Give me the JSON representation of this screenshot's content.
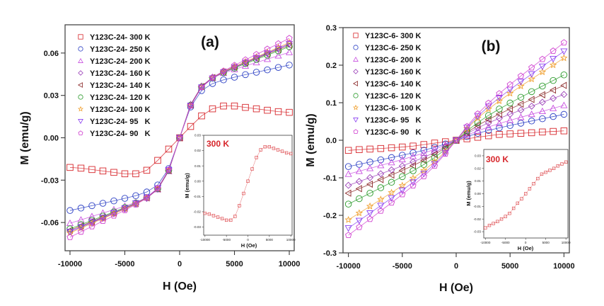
{
  "chart_data": [
    {
      "type": "scatter",
      "panel_label": "(a)",
      "xlabel": "H (Oe)",
      "ylabel": "M (emu/g)",
      "xlim": [
        -10450,
        10450
      ],
      "ylim": [
        -0.08,
        0.08
      ],
      "xticks": [
        -10000,
        -5000,
        0,
        5000,
        10000
      ],
      "xtick_labels": [
        "-10000",
        "-5000",
        "0",
        "5000",
        "10000"
      ],
      "yticks": [
        -0.06,
        -0.03,
        0,
        0.03,
        0.06
      ],
      "ytick_labels": [
        "-0.06",
        "-0.03",
        "0.00",
        "0.03",
        "0.06"
      ],
      "grid": false,
      "legend_position": "top-left",
      "x": [
        -10000,
        -9000,
        -8000,
        -7000,
        -6000,
        -5000,
        -4000,
        -3000,
        -2000,
        -1000,
        0,
        1000,
        2000,
        3000,
        4000,
        5000,
        6000,
        7000,
        8000,
        9000,
        10000
      ],
      "series": [
        {
          "name": "Y123C-24- 300 K",
          "marker": "square",
          "color": "#d7262b",
          "values": [
            -0.021,
            -0.0215,
            -0.0225,
            -0.0235,
            -0.0245,
            -0.0255,
            -0.0255,
            -0.023,
            -0.016,
            -0.008,
            0,
            0.008,
            0.0155,
            0.0205,
            0.0225,
            0.0225,
            0.0215,
            0.0205,
            0.0195,
            0.0185,
            0.018
          ]
        },
        {
          "name": "Y123C-24- 250 K",
          "marker": "circle",
          "color": "#2b3fc4",
          "values": [
            -0.0515,
            -0.0498,
            -0.0481,
            -0.0464,
            -0.0447,
            -0.0429,
            -0.041,
            -0.0384,
            -0.0334,
            -0.0218,
            0,
            0.0218,
            0.0334,
            0.0384,
            0.041,
            0.0429,
            0.0447,
            0.0464,
            0.0481,
            0.0498,
            0.0515
          ]
        },
        {
          "name": "Y123C-24- 200 K",
          "marker": "triangle-up",
          "color": "#c84fe0",
          "values": [
            -0.0605,
            -0.0581,
            -0.0557,
            -0.0533,
            -0.0509,
            -0.0484,
            -0.0458,
            -0.0424,
            -0.0366,
            -0.0237,
            0,
            0.0237,
            0.0366,
            0.0424,
            0.0458,
            0.0484,
            0.0509,
            0.0533,
            0.0557,
            0.0581,
            0.0605
          ]
        },
        {
          "name": "Y123C-24- 160 K",
          "marker": "diamond",
          "color": "#9a3fb8",
          "values": [
            -0.0665,
            -0.0633,
            -0.0601,
            -0.0569,
            -0.0537,
            -0.0504,
            -0.047,
            -0.0429,
            -0.0364,
            -0.0233,
            0,
            0.0233,
            0.0364,
            0.0429,
            0.047,
            0.0504,
            0.0537,
            0.0569,
            0.0601,
            0.0633,
            0.0665
          ]
        },
        {
          "name": "Y123C-24- 140 K",
          "marker": "triangle-left",
          "color": "#8b2a2a",
          "values": [
            -0.0655,
            -0.0624,
            -0.0593,
            -0.0562,
            -0.0531,
            -0.0499,
            -0.0466,
            -0.0426,
            -0.0362,
            -0.0232,
            0,
            0.0232,
            0.0362,
            0.0426,
            0.0466,
            0.0499,
            0.0531,
            0.0562,
            0.0593,
            0.0624,
            0.0655
          ]
        },
        {
          "name": "Y123C-24- 120 K",
          "marker": "circle",
          "color": "#2a9a2a",
          "values": [
            -0.0645,
            -0.0615,
            -0.0585,
            -0.0555,
            -0.0525,
            -0.0494,
            -0.0462,
            -0.0423,
            -0.036,
            -0.0231,
            0,
            0.0231,
            0.036,
            0.0423,
            0.0462,
            0.0494,
            0.0525,
            0.0555,
            0.0585,
            0.0615,
            0.0645
          ]
        },
        {
          "name": "Y123C-24- 100 K",
          "marker": "star",
          "color": "#f0a030",
          "values": [
            -0.0674,
            -0.064,
            -0.0606,
            -0.0572,
            -0.0538,
            -0.0503,
            -0.0467,
            -0.0424,
            -0.0359,
            -0.0229,
            0,
            0.0229,
            0.0359,
            0.0424,
            0.0467,
            0.0503,
            0.0538,
            0.0572,
            0.0606,
            0.064,
            0.0674
          ]
        },
        {
          "name": "Y123C-24- 95   K",
          "marker": "triangle-down",
          "color": "#8a3ff0",
          "values": [
            -0.0664,
            -0.0631,
            -0.0598,
            -0.0565,
            -0.0532,
            -0.0498,
            -0.0463,
            -0.0421,
            -0.0357,
            -0.0228,
            0,
            0.0228,
            0.0357,
            0.0421,
            0.0463,
            0.0498,
            0.0532,
            0.0565,
            0.0598,
            0.0631,
            0.0664
          ]
        },
        {
          "name": "Y123C-24- 90   K",
          "marker": "pentagon",
          "color": "#d040d0",
          "values": [
            -0.0704,
            -0.0666,
            -0.0628,
            -0.059,
            -0.0552,
            -0.0513,
            -0.0473,
            -0.0426,
            -0.0358,
            -0.0227,
            0,
            0.0227,
            0.0358,
            0.0426,
            0.0473,
            0.0513,
            0.0552,
            0.059,
            0.0628,
            0.0666,
            0.0704
          ]
        }
      ],
      "inset": {
        "type": "scatter",
        "annotation": "300 K",
        "annotation_color": "#d7262b",
        "xlabel": "H (Oe)",
        "ylabel": "M (emu/g)",
        "xlim": [
          -10300,
          10300
        ],
        "ylim": [
          -0.0353,
          0.03
        ],
        "xticks": [
          -10000,
          -5000,
          0,
          5000,
          10000
        ],
        "xtick_labels": [
          "-10000",
          "-5000",
          "0",
          "5000",
          "10000"
        ],
        "yticks": [
          -0.03,
          -0.02,
          -0.01,
          0,
          0.01,
          0.02,
          0.03
        ],
        "ytick_labels": [
          "-0.03",
          "-0.02",
          "-0.01",
          "0.00",
          "0.01",
          "0.02",
          "0.03"
        ],
        "x": [
          -10000,
          -9000,
          -8000,
          -7000,
          -6000,
          -5000,
          -4000,
          -3000,
          -2000,
          -1000,
          0,
          1000,
          2000,
          3000,
          4000,
          5000,
          6000,
          7000,
          8000,
          9000,
          10000
        ],
        "series": [
          {
            "name": "300 K",
            "marker": "square",
            "color": "#d7262b",
            "values": [
              -0.021,
              -0.0215,
              -0.0225,
              -0.0235,
              -0.0245,
              -0.0255,
              -0.0255,
              -0.023,
              -0.016,
              -0.008,
              0,
              0.008,
              0.0155,
              0.0205,
              0.0225,
              0.0225,
              0.0215,
              0.0205,
              0.0195,
              0.0185,
              0.018
            ]
          }
        ]
      }
    },
    {
      "type": "scatter",
      "panel_label": "(b)",
      "xlabel": "H (Oe)",
      "ylabel": "M (emu/g)",
      "xlim": [
        -10500,
        10500
      ],
      "ylim": [
        -0.3,
        0.3
      ],
      "xticks": [
        -10000,
        -5000,
        0,
        5000,
        10000
      ],
      "xtick_labels": [
        "-10000",
        "-5000",
        "0",
        "5000",
        "10000"
      ],
      "yticks": [
        -0.3,
        -0.2,
        -0.1,
        0,
        0.1,
        0.2,
        0.3
      ],
      "ytick_labels": [
        "-0.3",
        "-0.2",
        "-0.1",
        "0.0",
        "0.1",
        "0.2",
        "0.3"
      ],
      "grid": false,
      "legend_position": "top-left",
      "x": [
        -10000,
        -9000,
        -8000,
        -7000,
        -6000,
        -5000,
        -4000,
        -3000,
        -2000,
        -1000,
        0,
        1000,
        2000,
        3000,
        4000,
        5000,
        6000,
        7000,
        8000,
        9000,
        10000
      ],
      "series": [
        {
          "name": "Y123C-6- 300 K",
          "marker": "square",
          "color": "#d7262b",
          "values": [
            -0.027,
            -0.025,
            -0.0235,
            -0.022,
            -0.02,
            -0.018,
            -0.0155,
            -0.0115,
            -0.0075,
            -0.004,
            0,
            0.004,
            0.008,
            0.012,
            0.0155,
            0.017,
            0.0185,
            0.02,
            0.022,
            0.0235,
            0.025
          ]
        },
        {
          "name": "Y123C-6- 250 K",
          "marker": "circle",
          "color": "#2b3fc4",
          "values": [
            -0.07,
            -0.0641,
            -0.0581,
            -0.0521,
            -0.0461,
            -0.0399,
            -0.0335,
            -0.0266,
            -0.0189,
            -0.0099,
            0,
            0.0098,
            0.0186,
            0.0262,
            0.033,
            0.0393,
            0.0454,
            0.0513,
            0.0573,
            0.0631,
            0.069
          ]
        },
        {
          "name": "Y123C-6- 200 K",
          "marker": "triangle-up",
          "color": "#c84fe0",
          "values": [
            -0.09,
            -0.0824,
            -0.0747,
            -0.067,
            -0.0592,
            -0.0513,
            -0.043,
            -0.0342,
            -0.0243,
            -0.0128,
            0,
            0.0132,
            0.0251,
            0.0353,
            0.0445,
            0.053,
            0.0612,
            0.0692,
            0.0772,
            0.0851,
            0.093
          ]
        },
        {
          "name": "Y123C-6- 160 K",
          "marker": "diamond",
          "color": "#9a3fb8",
          "values": [
            -0.12,
            -0.1098,
            -0.0996,
            -0.0893,
            -0.079,
            -0.0684,
            -0.0574,
            -0.0456,
            -0.0324,
            -0.017,
            0,
            0.0173,
            0.0329,
            0.0464,
            0.0583,
            0.0695,
            0.0803,
            0.0908,
            0.1013,
            0.1116,
            0.122
          ]
        },
        {
          "name": "Y123C-6- 140 K",
          "marker": "triangle-left",
          "color": "#8b2a2a",
          "values": [
            -0.141,
            -0.129,
            -0.117,
            -0.1049,
            -0.0928,
            -0.0804,
            -0.0674,
            -0.0536,
            -0.0381,
            -0.02,
            0,
            0.0207,
            0.0394,
            0.0555,
            0.0698,
            0.0832,
            0.0961,
            0.1086,
            0.1212,
            0.1336,
            0.146
          ]
        },
        {
          "name": "Y123C-6- 120 K",
          "marker": "circle",
          "color": "#2a9a2a",
          "values": [
            -0.17,
            -0.1556,
            -0.1411,
            -0.1265,
            -0.1119,
            -0.0969,
            -0.0813,
            -0.0646,
            -0.0459,
            -0.0241,
            0,
            0.0247,
            0.047,
            0.0661,
            0.0832,
            0.0992,
            0.1145,
            0.1295,
            0.1444,
            0.1592,
            0.174
          ]
        },
        {
          "name": "Y123C-6- 100 K",
          "marker": "star",
          "color": "#f0a030",
          "values": [
            -0.212,
            -0.194,
            -0.176,
            -0.1577,
            -0.1395,
            -0.1208,
            -0.1013,
            -0.0806,
            -0.0572,
            -0.0301,
            0,
            0.0311,
            0.0591,
            0.0832,
            0.1047,
            0.1248,
            0.1441,
            0.1629,
            0.1818,
            0.2004,
            0.219
          ]
        },
        {
          "name": "Y123C-6- 95   K",
          "marker": "triangle-down",
          "color": "#8a3ff0",
          "values": [
            -0.234,
            -0.2141,
            -0.1942,
            -0.1741,
            -0.154,
            -0.1334,
            -0.1119,
            -0.0889,
            -0.0632,
            -0.0332,
            0,
            0.0337,
            0.064,
            0.0901,
            0.1133,
            0.1351,
            0.1559,
            0.1763,
            0.1967,
            0.2169,
            0.237
          ]
        },
        {
          "name": "Y123C-6- 90   K",
          "marker": "pentagon",
          "color": "#d040d0",
          "values": [
            -0.253,
            -0.2315,
            -0.21,
            -0.1882,
            -0.1665,
            -0.1442,
            -0.1209,
            -0.0961,
            -0.0683,
            -0.0359,
            0,
            0.0369,
            0.0702,
            0.0988,
            0.1243,
            0.1482,
            0.1711,
            0.1934,
            0.2158,
            0.2379,
            0.26
          ]
        }
      ],
      "inset": {
        "type": "scatter",
        "annotation": "300 K",
        "annotation_color": "#d7262b",
        "xlabel": "H (Oe)",
        "ylabel": "M (emu/g)",
        "xlim": [
          -10400,
          10500
        ],
        "ylim": [
          -0.035,
          0.035
        ],
        "xticks": [
          -10000,
          -5000,
          0,
          5000,
          10000
        ],
        "xtick_labels": [
          "-10000",
          "-5000",
          "0",
          "5000",
          "10000"
        ],
        "yticks": [
          -0.03,
          -0.02,
          -0.01,
          0,
          0.01,
          0.02,
          0.03
        ],
        "ytick_labels": [
          "-0.03",
          "-0.02",
          "-0.01",
          "0.00",
          "0.01",
          "0.02",
          "0.03"
        ],
        "x": [
          -10000,
          -9000,
          -8000,
          -7000,
          -6000,
          -5000,
          -4000,
          -3000,
          -2000,
          -1000,
          0,
          1000,
          2000,
          3000,
          4000,
          5000,
          6000,
          7000,
          8000,
          9000,
          10000
        ],
        "series": [
          {
            "name": "300 K",
            "marker": "square",
            "color": "#d7262b",
            "values": [
              -0.027,
              -0.025,
              -0.0235,
              -0.022,
              -0.02,
              -0.018,
              -0.0155,
              -0.0115,
              -0.0075,
              -0.004,
              0,
              0.004,
              0.008,
              0.012,
              0.0155,
              0.017,
              0.0185,
              0.02,
              0.022,
              0.0235,
              0.025
            ]
          }
        ]
      }
    }
  ]
}
